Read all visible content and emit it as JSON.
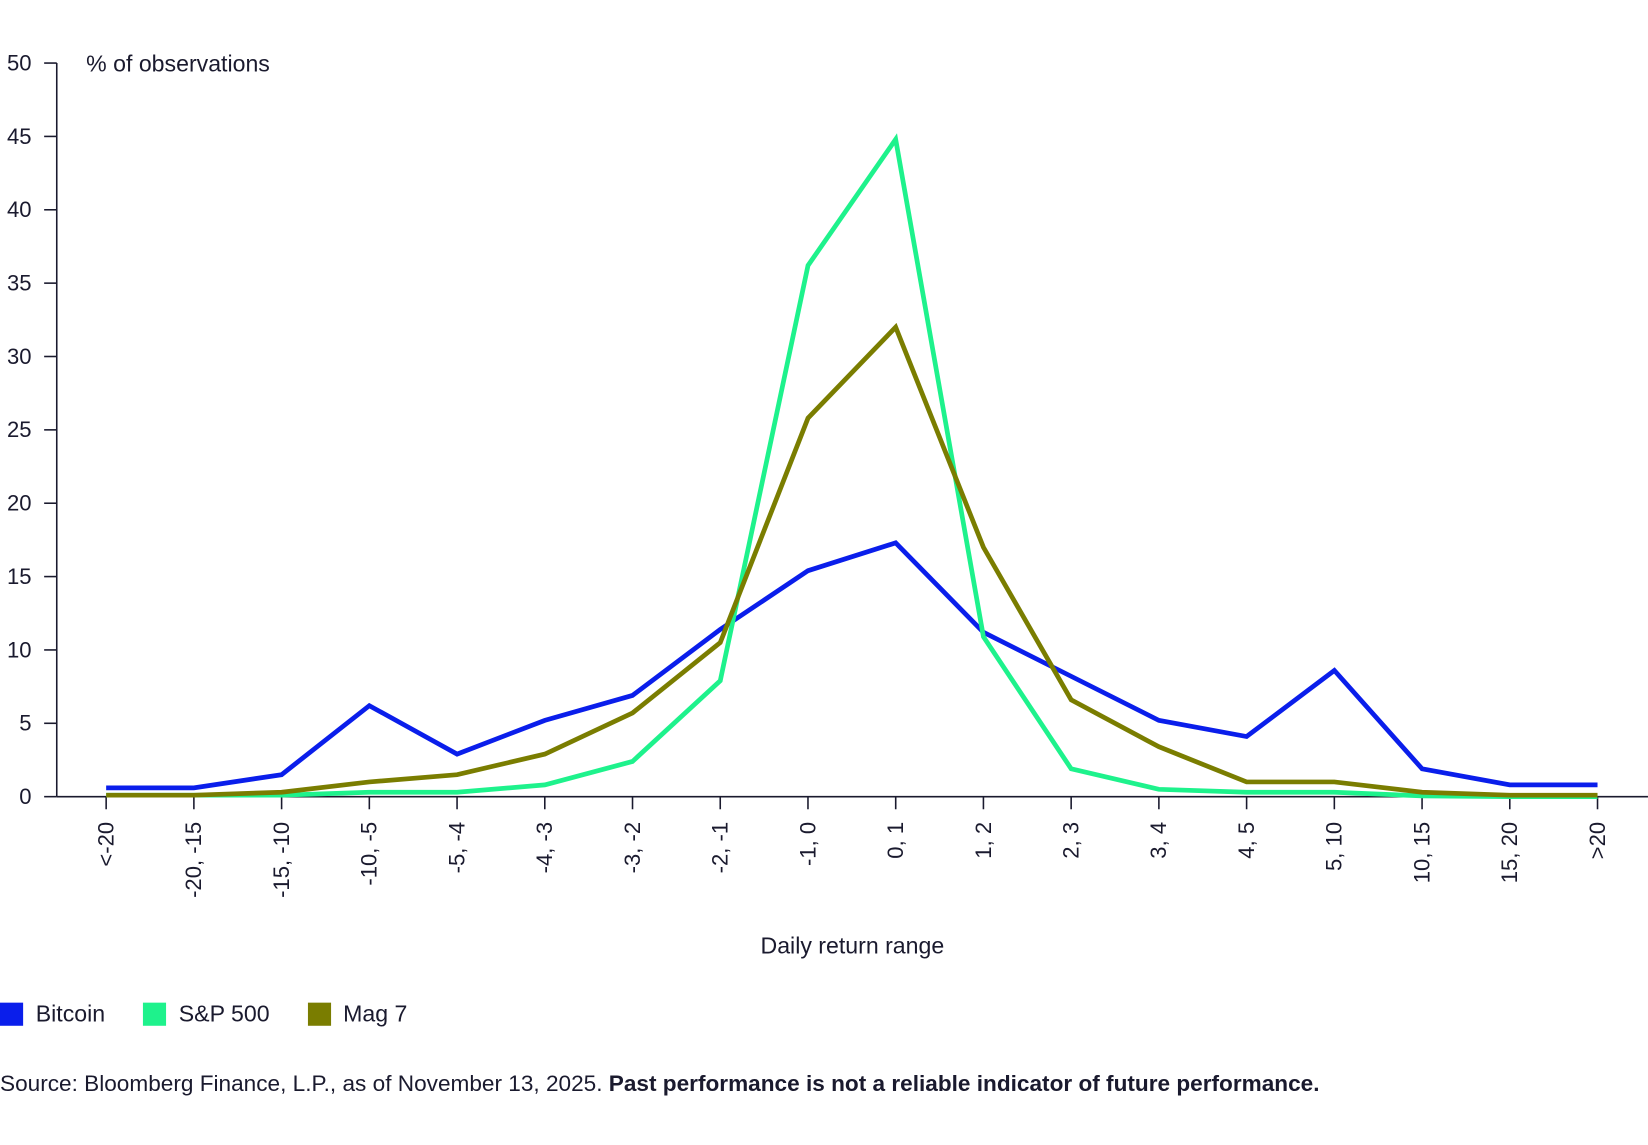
{
  "chart_data": {
    "type": "line",
    "title": "",
    "xlabel": "Daily return range",
    "ylabel": "% of observations",
    "ylim": [
      0,
      50
    ],
    "yticks": [
      0,
      5,
      10,
      15,
      20,
      25,
      30,
      35,
      40,
      45,
      50
    ],
    "grid": false,
    "legend_position": "bottom-left",
    "categories": [
      "<-20",
      "-20, -15",
      "-15, -10",
      "-10, -5",
      "-5, -4",
      "-4, -3",
      "-3, -2",
      "-2, -1",
      "-1, 0",
      "0, 1",
      "1, 2",
      "2, 3",
      "3, 4",
      "4, 5",
      "5, 10",
      "10, 15",
      "15, 20",
      ">20"
    ],
    "series": [
      {
        "name": "Bitcoin",
        "color": "#0a1eeb",
        "values": [
          0.6,
          0.6,
          1.5,
          6.2,
          2.9,
          5.2,
          6.9,
          11.4,
          15.4,
          17.3,
          11.2,
          8.2,
          5.2,
          4.1,
          8.6,
          1.9,
          0.8,
          0.8
        ]
      },
      {
        "name": "S&P 500",
        "color": "#1ef28c",
        "values": [
          0.1,
          0.1,
          0.1,
          0.3,
          0.3,
          0.8,
          2.4,
          7.9,
          36.2,
          44.8,
          10.9,
          1.9,
          0.5,
          0.3,
          0.3,
          0.05,
          0.0,
          0.0
        ]
      },
      {
        "name": "Mag 7",
        "color": "#7a7d00",
        "values": [
          0.1,
          0.1,
          0.3,
          1.0,
          1.5,
          2.9,
          5.7,
          10.5,
          25.8,
          32.0,
          17.0,
          6.6,
          3.4,
          1.0,
          1.0,
          0.3,
          0.1,
          0.1
        ]
      }
    ]
  },
  "source": {
    "text": "Source: Bloomberg Finance, L.P., as of November 13, 2025. ",
    "disclaimer": "Past performance is not a reliable indicator of future performance."
  }
}
